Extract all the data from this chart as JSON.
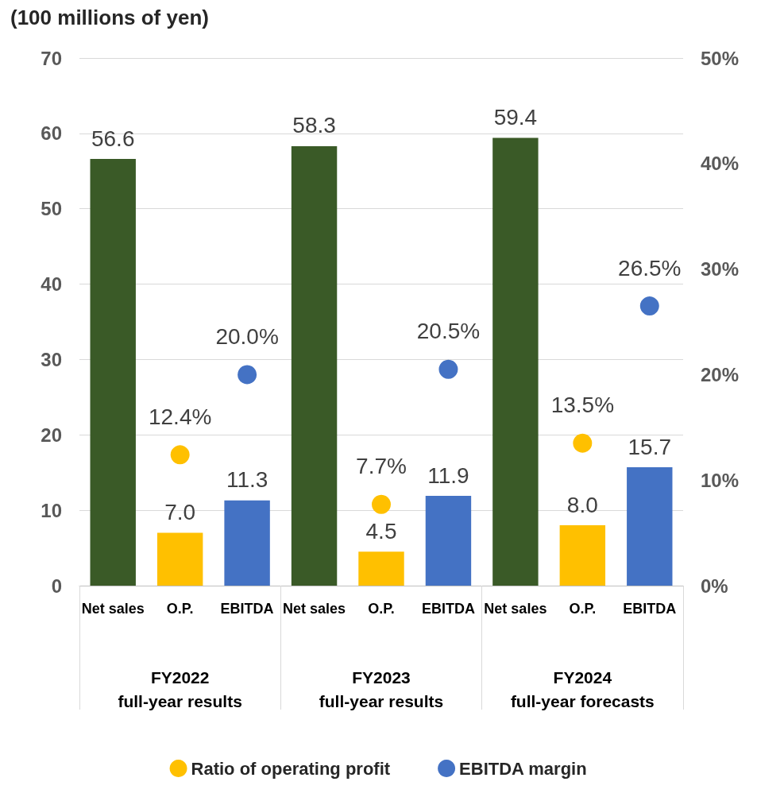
{
  "chart_data": {
    "type": "bar",
    "ylabel": "(100 millions of yen)",
    "categories": [
      "Net sales",
      "O.P.",
      "EBITDA",
      "Net sales",
      "O.P.",
      "EBITDA",
      "Net sales",
      "O.P.",
      "EBITDA"
    ],
    "annotations": [
      "FY2022\nfull-year results",
      "FY2023\nfull-year results",
      "FY2024\nfull-year forecasts"
    ],
    "series": [
      {
        "colors": [
          "#3a5a27",
          "#ffc000",
          "#4472c4",
          "#3a5a27",
          "#ffc000",
          "#4472c4",
          "#3a5a27",
          "#ffc000",
          "#4472c4"
        ],
        "values": [
          56.6,
          7.0,
          11.3,
          58.3,
          4.5,
          11.9,
          59.4,
          8.0,
          15.7
        ],
        "value_labels": [
          "56.6",
          "7.0",
          "11.3",
          "58.3",
          "4.5",
          "11.9",
          "59.4",
          "8.0",
          "15.7"
        ]
      },
      {
        "type": "scatter",
        "name": "Ratio of operating profit",
        "color": "#ffc000",
        "axis": "y2",
        "values": [
          null,
          12.4,
          null,
          null,
          7.7,
          null,
          null,
          13.5,
          null
        ],
        "value_labels": [
          null,
          "12.4%",
          null,
          null,
          "7.7%",
          null,
          null,
          "13.5%",
          null
        ]
      },
      {
        "type": "scatter",
        "name": "EBITDA margin",
        "color": "#4472c4",
        "axis": "y2",
        "values": [
          null,
          null,
          20.0,
          null,
          null,
          20.5,
          null,
          null,
          26.5
        ],
        "value_labels": [
          null,
          null,
          "20.0%",
          null,
          null,
          "20.5%",
          null,
          null,
          "26.5%"
        ]
      }
    ],
    "ylim": [
      0,
      70
    ],
    "yticks": [
      0,
      10,
      20,
      30,
      40,
      50,
      60,
      70
    ],
    "y2lim": [
      0,
      50
    ],
    "y2ticks": [
      {
        "value": 0,
        "label": "0%"
      },
      {
        "value": 10,
        "label": "10%"
      },
      {
        "value": 20,
        "label": "20%"
      },
      {
        "value": 30,
        "label": "30%"
      },
      {
        "value": 40,
        "label": "40%"
      },
      {
        "value": 50,
        "label": "50%"
      }
    ],
    "grid": "y",
    "legend": "bottom",
    "marker": "circle"
  }
}
